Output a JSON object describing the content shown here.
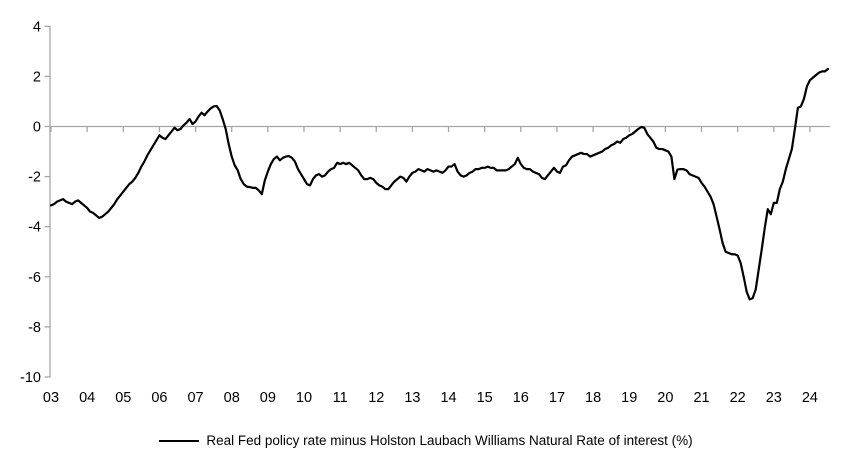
{
  "chart_data": {
    "type": "line",
    "title": "",
    "legend_label": "Real Fed policy rate minus Holston Laubach Williams Natural Rate of interest (%)",
    "xlabel": "",
    "ylabel": "",
    "ylim": [
      -10,
      4
    ],
    "y_ticks": [
      4,
      2,
      0,
      -2,
      -4,
      -6,
      -8,
      -10
    ],
    "x_tick_labels": [
      "03",
      "04",
      "05",
      "06",
      "07",
      "08",
      "09",
      "10",
      "11",
      "12",
      "13",
      "14",
      "15",
      "16",
      "17",
      "18",
      "19",
      "20",
      "21",
      "22",
      "23",
      "24"
    ],
    "x_tick_years": [
      2003,
      2004,
      2005,
      2006,
      2007,
      2008,
      2009,
      2010,
      2011,
      2012,
      2013,
      2014,
      2015,
      2016,
      2017,
      2018,
      2019,
      2020,
      2021,
      2022,
      2023,
      2024
    ],
    "grid": "zero-line-only",
    "legend_position": "bottom-center",
    "colors": {
      "line": "#000000",
      "axis": "#a6a6a6",
      "text": "#000000",
      "background": "#ffffff"
    },
    "series": [
      {
        "name": "Real Fed policy rate minus Holston Laubach Williams Natural Rate of interest (%)",
        "x_start_year": 2003,
        "x_start_month": 1,
        "frequency": "monthly",
        "values": [
          -3.15,
          -3.1,
          -3.0,
          -2.95,
          -2.9,
          -3.0,
          -3.05,
          -3.1,
          -3.0,
          -2.95,
          -3.05,
          -3.15,
          -3.25,
          -3.4,
          -3.45,
          -3.55,
          -3.65,
          -3.6,
          -3.5,
          -3.4,
          -3.25,
          -3.1,
          -2.9,
          -2.75,
          -2.6,
          -2.45,
          -2.3,
          -2.2,
          -2.05,
          -1.85,
          -1.6,
          -1.4,
          -1.15,
          -0.95,
          -0.75,
          -0.55,
          -0.35,
          -0.45,
          -0.5,
          -0.35,
          -0.2,
          -0.05,
          -0.15,
          -0.1,
          0.05,
          0.15,
          0.3,
          0.1,
          0.2,
          0.4,
          0.55,
          0.45,
          0.6,
          0.72,
          0.8,
          0.82,
          0.65,
          0.3,
          -0.1,
          -0.7,
          -1.2,
          -1.55,
          -1.75,
          -2.1,
          -2.3,
          -2.4,
          -2.42,
          -2.45,
          -2.45,
          -2.55,
          -2.7,
          -2.15,
          -1.8,
          -1.5,
          -1.3,
          -1.2,
          -1.35,
          -1.25,
          -1.2,
          -1.18,
          -1.25,
          -1.4,
          -1.7,
          -1.9,
          -2.1,
          -2.3,
          -2.35,
          -2.1,
          -1.95,
          -1.9,
          -2.0,
          -1.95,
          -1.8,
          -1.7,
          -1.65,
          -1.45,
          -1.5,
          -1.45,
          -1.5,
          -1.45,
          -1.55,
          -1.65,
          -1.75,
          -1.95,
          -2.1,
          -2.1,
          -2.05,
          -2.1,
          -2.25,
          -2.35,
          -2.4,
          -2.5,
          -2.5,
          -2.35,
          -2.2,
          -2.1,
          -2.0,
          -2.05,
          -2.2,
          -2.0,
          -1.85,
          -1.8,
          -1.7,
          -1.75,
          -1.8,
          -1.7,
          -1.75,
          -1.8,
          -1.75,
          -1.8,
          -1.85,
          -1.75,
          -1.6,
          -1.6,
          -1.5,
          -1.8,
          -1.95,
          -2.0,
          -1.95,
          -1.85,
          -1.8,
          -1.7,
          -1.7,
          -1.65,
          -1.65,
          -1.6,
          -1.65,
          -1.65,
          -1.75,
          -1.75,
          -1.75,
          -1.75,
          -1.7,
          -1.6,
          -1.5,
          -1.25,
          -1.5,
          -1.65,
          -1.7,
          -1.7,
          -1.8,
          -1.85,
          -1.9,
          -2.05,
          -2.1,
          -1.95,
          -1.8,
          -1.65,
          -1.8,
          -1.85,
          -1.6,
          -1.55,
          -1.35,
          -1.2,
          -1.15,
          -1.1,
          -1.05,
          -1.1,
          -1.1,
          -1.2,
          -1.15,
          -1.1,
          -1.05,
          -1.0,
          -0.9,
          -0.85,
          -0.75,
          -0.7,
          -0.6,
          -0.65,
          -0.5,
          -0.45,
          -0.35,
          -0.3,
          -0.2,
          -0.1,
          -0.02,
          -0.05,
          -0.3,
          -0.45,
          -0.6,
          -0.85,
          -0.9,
          -0.9,
          -0.95,
          -1.0,
          -1.2,
          -2.1,
          -1.72,
          -1.7,
          -1.7,
          -1.75,
          -1.9,
          -1.95,
          -2.0,
          -2.05,
          -2.25,
          -2.4,
          -2.6,
          -2.8,
          -3.1,
          -3.6,
          -4.1,
          -4.65,
          -5.0,
          -5.05,
          -5.1,
          -5.1,
          -5.15,
          -5.45,
          -6.0,
          -6.6,
          -6.9,
          -6.85,
          -6.5,
          -5.7,
          -4.9,
          -4.05,
          -3.3,
          -3.5,
          -3.05,
          -3.05,
          -2.5,
          -2.2,
          -1.7,
          -1.3,
          -0.9,
          -0.1,
          0.75,
          0.8,
          1.1,
          1.6,
          1.85,
          1.95,
          2.05,
          2.15,
          2.2,
          2.2,
          2.3
        ]
      }
    ]
  },
  "legend": {
    "label": "Real Fed policy rate minus Holston Laubach Williams Natural Rate of interest (%)"
  }
}
